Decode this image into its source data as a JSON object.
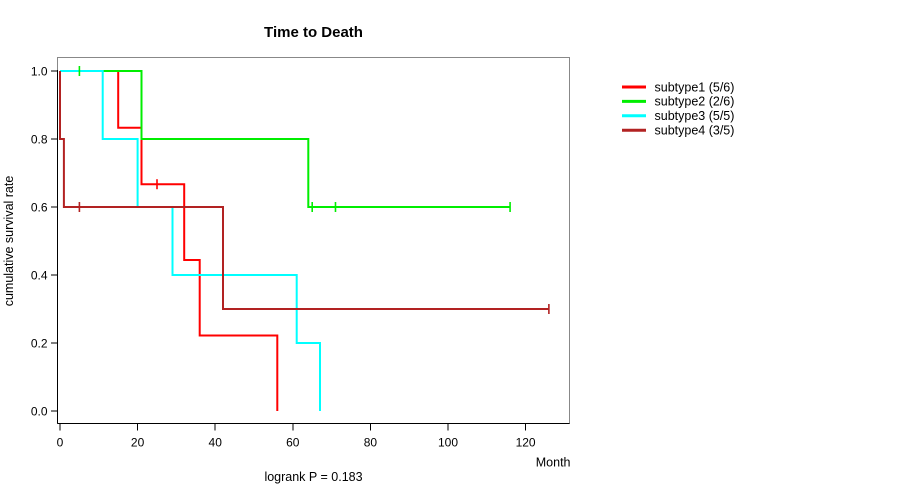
{
  "chart_data": {
    "type": "line",
    "subtype": "kaplan-meier-step",
    "title": "Time to Death",
    "xlabel": "Month",
    "ylabel": "cumulative survival rate",
    "p_value": "logrank P = 0.183",
    "xlim": [
      0,
      131
    ],
    "ylim": [
      0.0,
      1.0
    ],
    "x_ticks": [
      0,
      20,
      40,
      60,
      80,
      100,
      120
    ],
    "y_ticks": [
      "0.0",
      "0.2",
      "0.4",
      "0.6",
      "0.8",
      "1.0"
    ],
    "grid": "off",
    "legend_position": "right-outside",
    "series": [
      {
        "name": "subtype1 (5/6)",
        "color": "#FF0000",
        "steps": [
          [
            0,
            1.0
          ],
          [
            15,
            1.0
          ],
          [
            15,
            0.833
          ],
          [
            21,
            0.833
          ],
          [
            21,
            0.667
          ],
          [
            32,
            0.667
          ],
          [
            32,
            0.444
          ],
          [
            36,
            0.444
          ],
          [
            36,
            0.222
          ],
          [
            56,
            0.222
          ],
          [
            56,
            0.0
          ]
        ],
        "censors": [
          [
            25,
            0.667
          ]
        ]
      },
      {
        "name": "subtype2 (2/6)",
        "color": "#00EE00",
        "steps": [
          [
            0,
            1.0
          ],
          [
            21,
            1.0
          ],
          [
            21,
            0.8
          ],
          [
            64,
            0.8
          ],
          [
            64,
            0.6
          ],
          [
            116,
            0.6
          ]
        ],
        "censors": [
          [
            5,
            1.0
          ],
          [
            65,
            0.6
          ],
          [
            71,
            0.6
          ],
          [
            116,
            0.6
          ]
        ]
      },
      {
        "name": "subtype3 (5/5)",
        "color": "#00FFFF",
        "steps": [
          [
            0,
            1.0
          ],
          [
            11,
            1.0
          ],
          [
            11,
            0.8
          ],
          [
            20,
            0.8
          ],
          [
            20,
            0.6
          ],
          [
            29,
            0.6
          ],
          [
            29,
            0.4
          ],
          [
            61,
            0.4
          ],
          [
            61,
            0.2
          ],
          [
            67,
            0.2
          ],
          [
            67,
            0.0
          ]
        ],
        "censors": []
      },
      {
        "name": "subtype4 (3/5)",
        "color": "#B22222",
        "steps": [
          [
            0,
            1.0
          ],
          [
            0,
            0.8
          ],
          [
            1,
            0.8
          ],
          [
            1,
            0.6
          ],
          [
            42,
            0.6
          ],
          [
            42,
            0.3
          ],
          [
            126,
            0.3
          ]
        ],
        "censors": [
          [
            5,
            0.6
          ],
          [
            126,
            0.3
          ]
        ]
      }
    ]
  }
}
